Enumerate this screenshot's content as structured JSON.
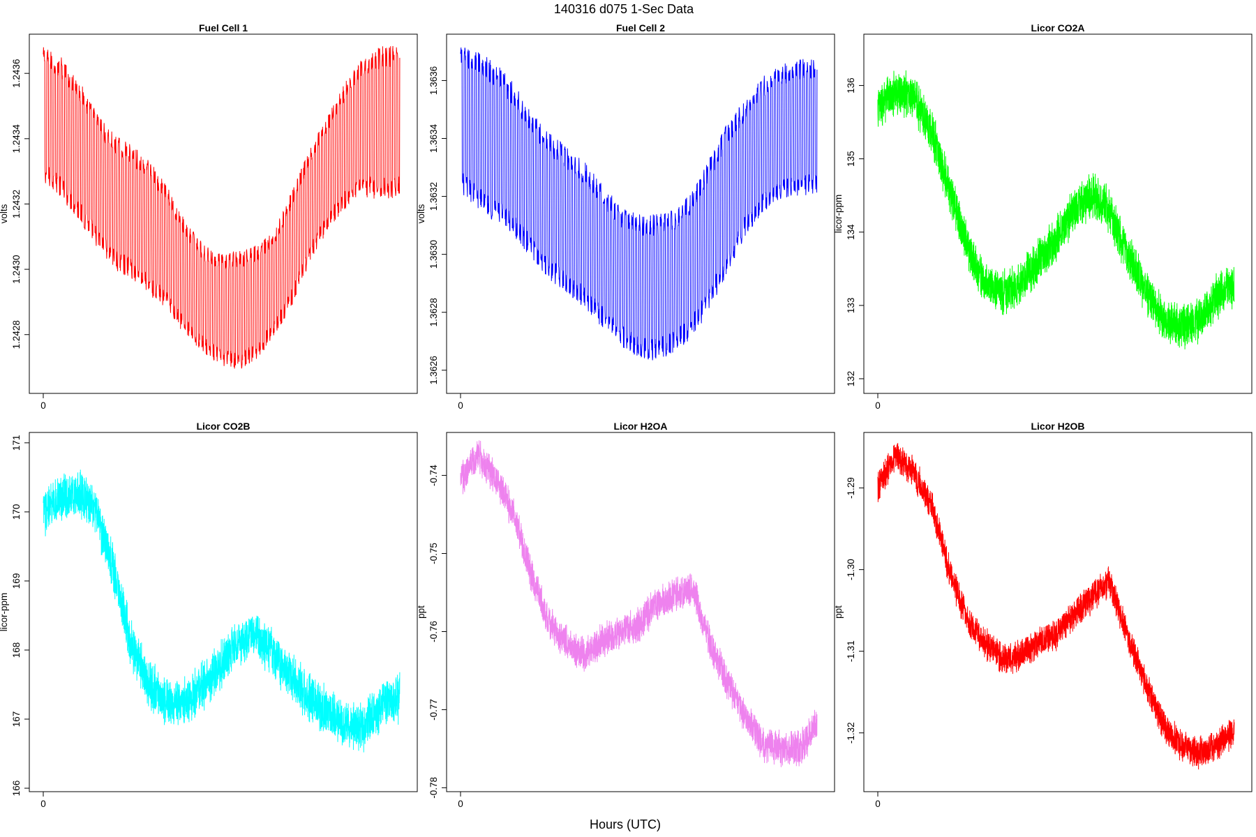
{
  "figure": {
    "title": "140316   d075   1-Sec Data",
    "xlabel": "Hours (UTC)"
  },
  "chart_data": [
    {
      "type": "line",
      "title": "Fuel Cell 1",
      "ylabel": "volts",
      "xlabel": "",
      "color": "#ff0000",
      "xlim": [
        0,
        1.01
      ],
      "ylim": [
        1.24262,
        1.24372
      ],
      "xticks": [
        0
      ],
      "yticks": [
        1.2428,
        1.243,
        1.2432,
        1.2434,
        1.2436
      ],
      "ytick_labels": [
        "1.2428",
        "1.2430",
        "1.2432",
        "1.2434",
        "1.2436"
      ],
      "series": [
        {
          "x": [
            0,
            0.05,
            0.1,
            0.15,
            0.2,
            0.25,
            0.3,
            0.35,
            0.4,
            0.45,
            0.5,
            0.55,
            0.6,
            0.65,
            0.7,
            0.75,
            0.8,
            0.85,
            0.9,
            0.95,
            1.0
          ],
          "upper": [
            1.24365,
            1.24362,
            1.24355,
            1.24345,
            1.24338,
            1.24335,
            1.2433,
            1.24322,
            1.24312,
            1.24305,
            1.24302,
            1.24303,
            1.24305,
            1.2431,
            1.24322,
            1.24335,
            1.24345,
            1.24355,
            1.24362,
            1.24365,
            1.24365
          ],
          "lower": [
            1.2433,
            1.24325,
            1.24318,
            1.2431,
            1.24303,
            1.243,
            1.24295,
            1.2429,
            1.24282,
            1.24277,
            1.24273,
            1.24272,
            1.24275,
            1.24282,
            1.24292,
            1.24305,
            1.24315,
            1.24322,
            1.24325,
            1.24325,
            1.24325
          ]
        }
      ]
    },
    {
      "type": "line",
      "title": "Fuel Cell 2",
      "ylabel": "volts",
      "xlabel": "",
      "color": "#0000ff",
      "xlim": [
        0,
        1.01
      ],
      "ylim": [
        1.36252,
        1.36376
      ],
      "xticks": [
        0
      ],
      "yticks": [
        1.3626,
        1.3628,
        1.363,
        1.3632,
        1.3634,
        1.3636
      ],
      "ytick_labels": [
        "1.3626",
        "1.3628",
        "1.3630",
        "1.3632",
        "1.3634",
        "1.3636"
      ],
      "series": [
        {
          "x": [
            0,
            0.05,
            0.1,
            0.15,
            0.2,
            0.25,
            0.3,
            0.35,
            0.4,
            0.45,
            0.5,
            0.55,
            0.6,
            0.65,
            0.7,
            0.75,
            0.8,
            0.85,
            0.9,
            0.95,
            1.0
          ],
          "upper": [
            1.36368,
            1.36366,
            1.36362,
            1.36355,
            1.36345,
            1.36338,
            1.36333,
            1.36328,
            1.3632,
            1.36313,
            1.3631,
            1.3631,
            1.36312,
            1.36318,
            1.3633,
            1.36342,
            1.3635,
            1.36358,
            1.36362,
            1.36364,
            1.36364
          ],
          "lower": [
            1.36325,
            1.3632,
            1.36315,
            1.3631,
            1.36302,
            1.36295,
            1.3629,
            1.36285,
            1.36278,
            1.36272,
            1.36268,
            1.36267,
            1.3627,
            1.36275,
            1.36285,
            1.36298,
            1.3631,
            1.36318,
            1.36322,
            1.36324,
            1.36324
          ]
        }
      ]
    },
    {
      "type": "line",
      "title": "Licor CO2A",
      "ylabel": "licor-ppm",
      "xlabel": "",
      "color": "#00ff00",
      "xlim": [
        0,
        1.01
      ],
      "ylim": [
        131.8,
        136.7
      ],
      "xticks": [
        0
      ],
      "yticks": [
        132,
        133,
        134,
        135,
        136
      ],
      "ytick_labels": [
        "132",
        "133",
        "134",
        "135",
        "136"
      ],
      "series": [
        {
          "x": [
            0,
            0.05,
            0.1,
            0.15,
            0.2,
            0.25,
            0.3,
            0.35,
            0.4,
            0.45,
            0.5,
            0.55,
            0.6,
            0.65,
            0.7,
            0.75,
            0.8,
            0.85,
            0.9,
            0.95,
            1.0
          ],
          "y": [
            135.7,
            135.9,
            135.85,
            135.4,
            134.6,
            133.8,
            133.3,
            133.15,
            133.3,
            133.6,
            133.9,
            134.3,
            134.5,
            134.3,
            133.7,
            133.2,
            132.8,
            132.7,
            132.8,
            133.1,
            133.3
          ],
          "noise": 0.35
        }
      ]
    },
    {
      "type": "line",
      "title": "Licor CO2B",
      "ylabel": "licor-ppm",
      "xlabel": "",
      "color": "#00ffff",
      "xlim": [
        0,
        1.01
      ],
      "ylim": [
        165.95,
        171.15
      ],
      "xticks": [
        0
      ],
      "yticks": [
        166,
        167,
        168,
        169,
        170,
        171
      ],
      "ytick_labels": [
        "166",
        "167",
        "168",
        "169",
        "170",
        "171"
      ],
      "series": [
        {
          "x": [
            0,
            0.05,
            0.1,
            0.15,
            0.2,
            0.25,
            0.3,
            0.35,
            0.4,
            0.45,
            0.5,
            0.55,
            0.6,
            0.65,
            0.7,
            0.75,
            0.8,
            0.85,
            0.9,
            0.95,
            1.0
          ],
          "y": [
            170.0,
            170.2,
            170.25,
            170.0,
            169.1,
            168.0,
            167.5,
            167.2,
            167.25,
            167.5,
            167.8,
            168.1,
            168.2,
            167.9,
            167.6,
            167.3,
            167.1,
            166.9,
            166.9,
            167.2,
            167.3
          ],
          "noise": 0.4
        }
      ]
    },
    {
      "type": "line",
      "title": "Licor H2OA",
      "ylabel": "ppt",
      "xlabel": "",
      "color": "#ee82ee",
      "xlim": [
        0,
        1.01
      ],
      "ylim": [
        -0.7805,
        -0.7345
      ],
      "xticks": [
        0
      ],
      "yticks": [
        -0.74,
        -0.75,
        -0.76,
        -0.77,
        -0.78
      ],
      "ytick_labels": [
        "-0.74",
        "-0.75",
        "-0.76",
        "-0.77",
        "-0.78"
      ],
      "series": [
        {
          "x": [
            0,
            0.05,
            0.1,
            0.15,
            0.2,
            0.25,
            0.3,
            0.35,
            0.4,
            0.45,
            0.5,
            0.55,
            0.6,
            0.65,
            0.7,
            0.75,
            0.8,
            0.85,
            0.9,
            0.95,
            1.0
          ],
          "y": [
            -0.7405,
            -0.7375,
            -0.7405,
            -0.745,
            -0.753,
            -0.759,
            -0.7615,
            -0.763,
            -0.761,
            -0.76,
            -0.759,
            -0.7565,
            -0.7555,
            -0.7545,
            -0.7615,
            -0.7665,
            -0.771,
            -0.7745,
            -0.775,
            -0.775,
            -0.772
          ],
          "noise": 0.0025
        }
      ]
    },
    {
      "type": "line",
      "title": "Licor H2OB",
      "ylabel": "ppt",
      "xlabel": "",
      "color": "#ff0000",
      "xlim": [
        0,
        1.01
      ],
      "ylim": [
        -1.3272,
        -1.2832
      ],
      "xticks": [
        0
      ],
      "yticks": [
        -1.29,
        -1.3,
        -1.31,
        -1.32
      ],
      "ytick_labels": [
        "-1.29",
        "-1.30",
        "-1.31",
        "-1.32"
      ],
      "series": [
        {
          "x": [
            0,
            0.05,
            0.1,
            0.15,
            0.2,
            0.25,
            0.3,
            0.35,
            0.4,
            0.45,
            0.5,
            0.55,
            0.6,
            0.65,
            0.7,
            0.75,
            0.8,
            0.85,
            0.9,
            0.95,
            1.0
          ],
          "y": [
            -1.29,
            -1.286,
            -1.288,
            -1.292,
            -1.3,
            -1.306,
            -1.309,
            -1.311,
            -1.3105,
            -1.309,
            -1.308,
            -1.3055,
            -1.3035,
            -1.3015,
            -1.308,
            -1.314,
            -1.319,
            -1.3215,
            -1.3225,
            -1.3215,
            -1.32
          ],
          "noise": 0.0022
        }
      ]
    }
  ]
}
